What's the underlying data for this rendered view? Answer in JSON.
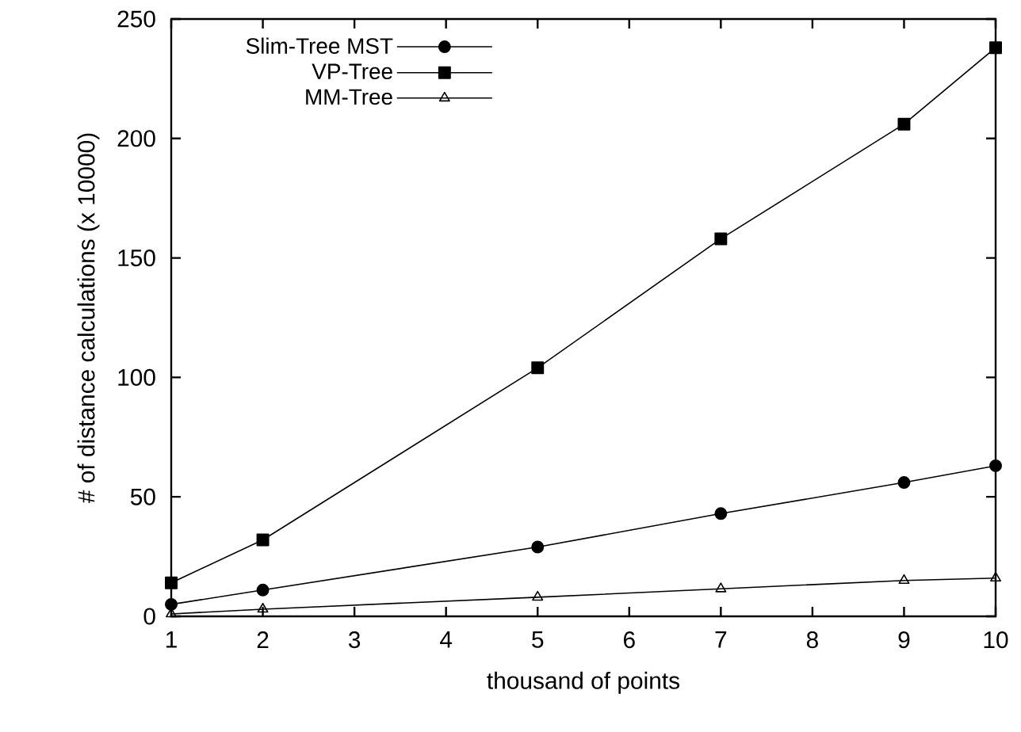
{
  "chart_data": {
    "type": "line",
    "xlabel": "thousand of points",
    "ylabel": "# of distance calculations (x 10000)",
    "x": [
      1,
      2,
      5,
      7,
      9,
      10
    ],
    "series": [
      {
        "name": "Slim-Tree MST",
        "color": "#000000",
        "marker": "circle",
        "values": [
          5,
          11,
          29,
          43,
          56,
          63
        ]
      },
      {
        "name": "VP-Tree",
        "color": "#000000",
        "marker": "square",
        "values": [
          14,
          32,
          104,
          158,
          206,
          238
        ]
      },
      {
        "name": "MM-Tree",
        "color": "#000000",
        "marker": "triangle",
        "values": [
          1,
          3,
          8,
          11.5,
          15,
          16
        ]
      }
    ],
    "xlim": [
      1,
      10
    ],
    "ylim": [
      0,
      250
    ],
    "xticks": [
      1,
      2,
      3,
      4,
      5,
      6,
      7,
      8,
      9,
      10
    ],
    "yticks": [
      0,
      50,
      100,
      150,
      200,
      250
    ],
    "legend": "top left",
    "grid": false,
    "line_style": "solid"
  }
}
